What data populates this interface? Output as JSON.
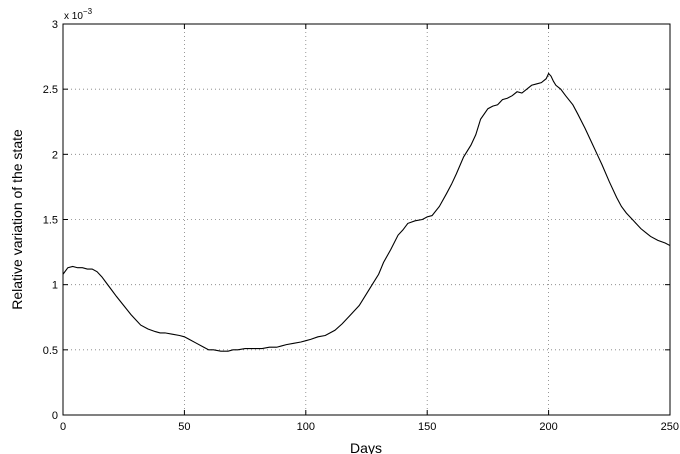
{
  "chart_data": {
    "type": "line",
    "title": "",
    "xlabel": "Days",
    "ylabel": "Relative variation of the state",
    "y_multiplier_label": "x 10",
    "y_multiplier_exponent": "−3",
    "xlim": [
      0,
      250
    ],
    "ylim": [
      0,
      3
    ],
    "x_ticks": [
      0,
      50,
      100,
      150,
      200,
      250
    ],
    "y_ticks": [
      0,
      0.5,
      1,
      1.5,
      2,
      2.5,
      3
    ],
    "x_tick_labels": [
      "0",
      "50",
      "100",
      "150",
      "200",
      "250"
    ],
    "y_tick_labels": [
      "0",
      "0.5",
      "1",
      "1.5",
      "2",
      "2.5",
      "3"
    ],
    "grid": true,
    "legend": "none",
    "series": [
      {
        "color": "#000000",
        "x": [
          0,
          2,
          4,
          6,
          8,
          10,
          12,
          14,
          16,
          18,
          20,
          22,
          25,
          28,
          30,
          32,
          35,
          38,
          40,
          42,
          45,
          48,
          50,
          52,
          55,
          58,
          60,
          62,
          65,
          68,
          70,
          72,
          75,
          78,
          80,
          82,
          85,
          88,
          90,
          92,
          95,
          98,
          100,
          102,
          105,
          108,
          110,
          112,
          115,
          118,
          120,
          122,
          125,
          128,
          130,
          132,
          135,
          138,
          140,
          142,
          145,
          148,
          150,
          152,
          155,
          158,
          160,
          162,
          165,
          168,
          170,
          172,
          175,
          177,
          179,
          181,
          183,
          185,
          187,
          189,
          191,
          193,
          195,
          197,
          199,
          200,
          201,
          202,
          203,
          205,
          207,
          210,
          212,
          215,
          218,
          220,
          222,
          225,
          228,
          230,
          232,
          235,
          238,
          240,
          242,
          245,
          248,
          250
        ],
        "y": [
          1.08,
          1.13,
          1.14,
          1.13,
          1.13,
          1.12,
          1.12,
          1.1,
          1.06,
          1.01,
          0.96,
          0.91,
          0.84,
          0.77,
          0.73,
          0.69,
          0.66,
          0.64,
          0.63,
          0.63,
          0.62,
          0.61,
          0.6,
          0.58,
          0.55,
          0.52,
          0.5,
          0.5,
          0.49,
          0.49,
          0.5,
          0.5,
          0.51,
          0.51,
          0.51,
          0.51,
          0.52,
          0.52,
          0.53,
          0.54,
          0.55,
          0.56,
          0.57,
          0.58,
          0.6,
          0.61,
          0.63,
          0.65,
          0.7,
          0.76,
          0.8,
          0.84,
          0.93,
          1.02,
          1.08,
          1.17,
          1.27,
          1.38,
          1.42,
          1.47,
          1.49,
          1.5,
          1.52,
          1.53,
          1.6,
          1.7,
          1.77,
          1.85,
          1.98,
          2.07,
          2.15,
          2.27,
          2.35,
          2.37,
          2.38,
          2.42,
          2.43,
          2.45,
          2.48,
          2.47,
          2.5,
          2.53,
          2.54,
          2.55,
          2.58,
          2.62,
          2.6,
          2.56,
          2.53,
          2.5,
          2.45,
          2.38,
          2.31,
          2.2,
          2.08,
          2.0,
          1.92,
          1.79,
          1.67,
          1.6,
          1.55,
          1.49,
          1.43,
          1.4,
          1.37,
          1.34,
          1.32,
          1.3
        ]
      }
    ]
  }
}
